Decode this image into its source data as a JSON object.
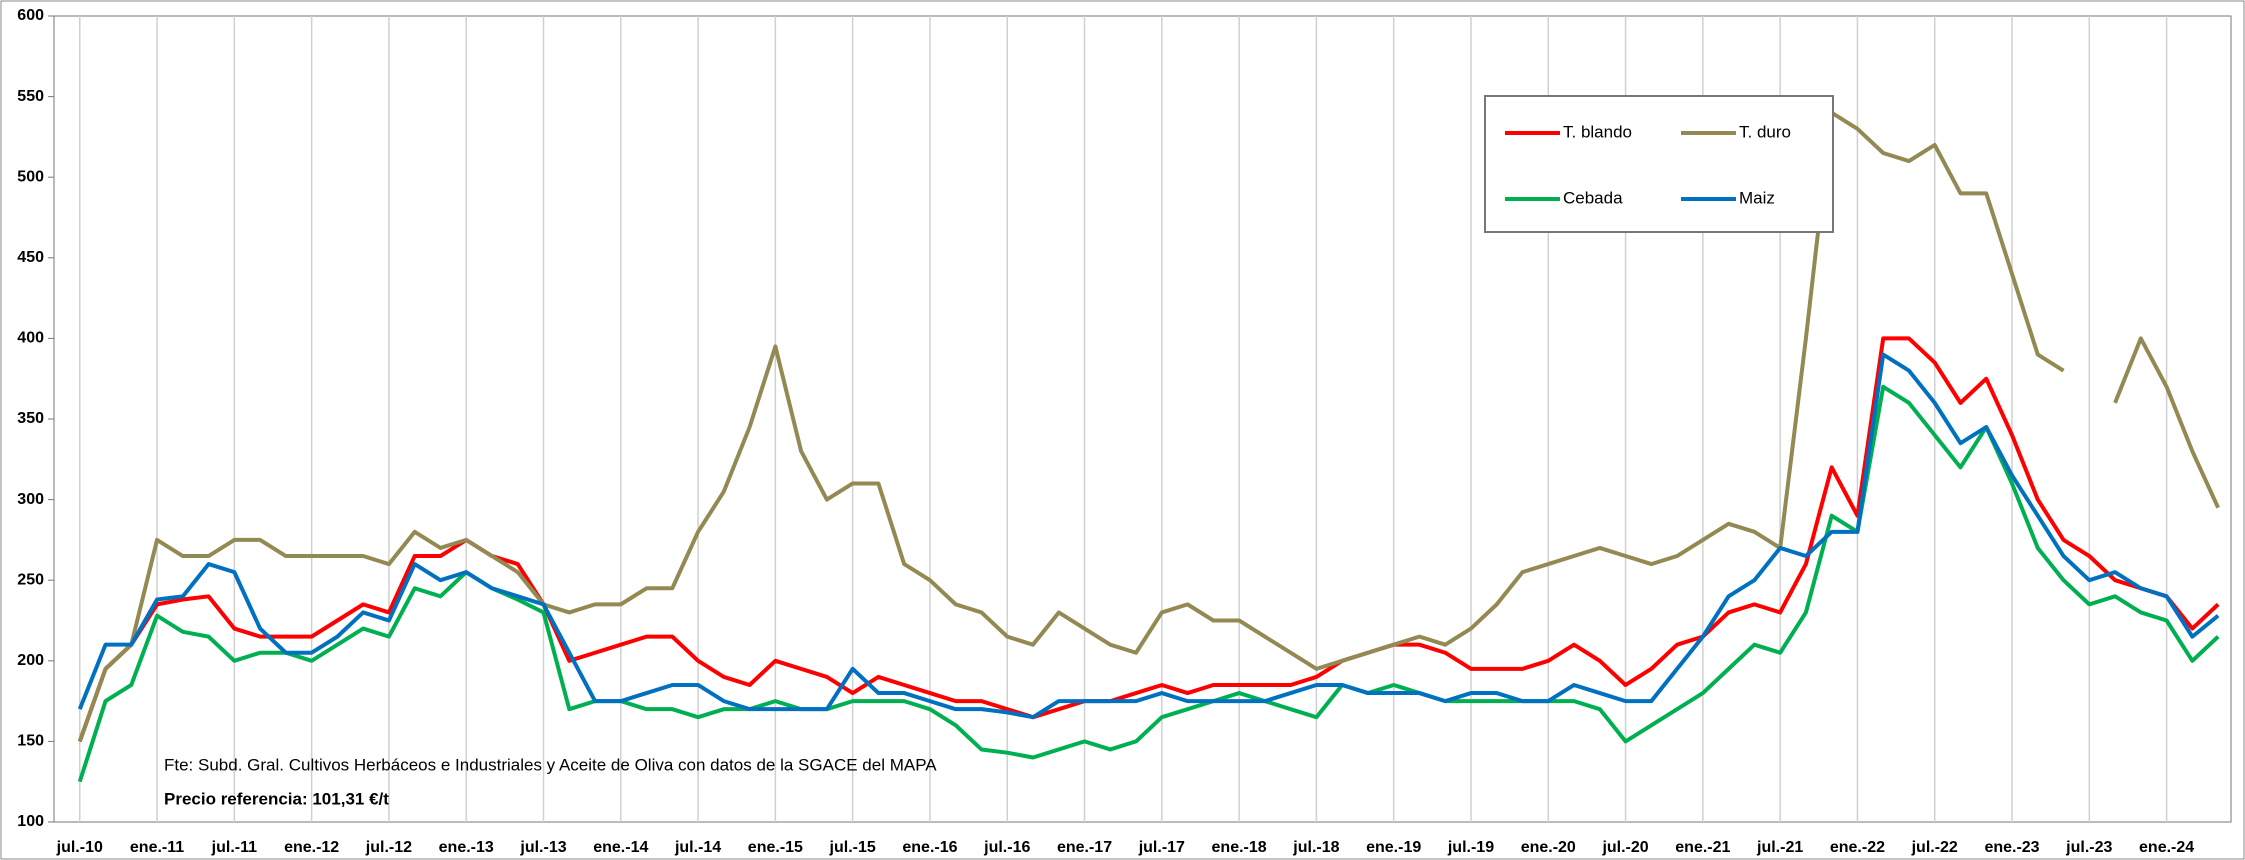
{
  "chart_data": {
    "type": "line",
    "x": [
      0,
      2,
      4,
      6,
      8,
      10,
      12,
      14,
      16,
      18,
      20,
      22,
      24,
      26,
      28,
      30,
      32,
      34,
      36,
      38,
      40,
      42,
      44,
      46,
      48,
      50,
      52,
      54,
      56,
      58,
      60,
      62,
      64,
      66,
      68,
      70,
      72,
      74,
      76,
      78,
      80,
      82,
      84,
      86,
      88,
      90,
      92,
      94,
      96,
      98,
      100,
      102,
      104,
      106,
      108,
      110,
      112,
      114,
      116,
      118,
      120,
      122,
      124,
      126,
      128,
      130,
      132,
      134,
      136,
      138,
      140,
      142,
      144,
      146,
      148,
      150,
      152,
      154,
      156,
      158,
      160,
      162,
      164,
      166
    ],
    "series": [
      {
        "name": "T. blando",
        "color": "#ff0000",
        "values": [
          150,
          195,
          210,
          235,
          238,
          240,
          220,
          215,
          215,
          215,
          225,
          235,
          230,
          265,
          265,
          275,
          265,
          260,
          235,
          200,
          205,
          210,
          215,
          215,
          200,
          190,
          185,
          200,
          195,
          190,
          180,
          190,
          185,
          180,
          175,
          175,
          170,
          165,
          170,
          175,
          175,
          180,
          185,
          180,
          185,
          185,
          185,
          185,
          190,
          200,
          205,
          210,
          210,
          205,
          195,
          195,
          195,
          200,
          210,
          200,
          185,
          195,
          210,
          215,
          230,
          235,
          230,
          260,
          320,
          290,
          400,
          400,
          385,
          360,
          375,
          340,
          300,
          275,
          265,
          250,
          245,
          240,
          220,
          235
        ]
      },
      {
        "name": "T. duro",
        "color": "#938953",
        "values": [
          150,
          195,
          210,
          275,
          265,
          265,
          275,
          275,
          265,
          265,
          265,
          265,
          260,
          280,
          270,
          275,
          265,
          255,
          235,
          230,
          235,
          235,
          245,
          245,
          280,
          305,
          345,
          395,
          330,
          300,
          310,
          310,
          260,
          250,
          235,
          230,
          215,
          210,
          230,
          220,
          210,
          205,
          230,
          235,
          225,
          225,
          215,
          205,
          195,
          200,
          205,
          210,
          215,
          210,
          220,
          235,
          255,
          260,
          265,
          270,
          265,
          260,
          265,
          275,
          285,
          280,
          270,
          400,
          540,
          530,
          515,
          510,
          520,
          490,
          490,
          440,
          390,
          380,
          null,
          360,
          400,
          370,
          330,
          295
        ]
      },
      {
        "name": "Cebada",
        "color": "#00b050",
        "values": [
          125,
          175,
          185,
          228,
          218,
          215,
          200,
          205,
          205,
          200,
          210,
          220,
          215,
          245,
          240,
          255,
          245,
          238,
          230,
          170,
          175,
          175,
          170,
          170,
          165,
          170,
          170,
          175,
          170,
          170,
          175,
          175,
          175,
          170,
          160,
          145,
          143,
          140,
          145,
          150,
          145,
          150,
          165,
          170,
          175,
          180,
          175,
          170,
          165,
          185,
          180,
          185,
          180,
          175,
          175,
          175,
          175,
          175,
          175,
          170,
          150,
          160,
          170,
          180,
          195,
          210,
          205,
          230,
          290,
          280,
          370,
          360,
          340,
          320,
          345,
          310,
          270,
          250,
          235,
          240,
          230,
          225,
          200,
          215
        ]
      },
      {
        "name": "Maiz",
        "color": "#0070c0",
        "values": [
          170,
          210,
          210,
          238,
          240,
          260,
          255,
          220,
          205,
          205,
          215,
          230,
          225,
          260,
          250,
          255,
          245,
          240,
          235,
          205,
          175,
          175,
          180,
          185,
          185,
          175,
          170,
          170,
          170,
          170,
          195,
          180,
          180,
          175,
          170,
          170,
          168,
          165,
          175,
          175,
          175,
          175,
          180,
          175,
          175,
          175,
          175,
          180,
          185,
          185,
          180,
          180,
          180,
          175,
          180,
          180,
          175,
          175,
          185,
          180,
          175,
          175,
          195,
          215,
          240,
          250,
          270,
          265,
          280,
          280,
          390,
          380,
          360,
          335,
          345,
          315,
          290,
          265,
          250,
          255,
          245,
          240,
          215,
          228
        ]
      }
    ],
    "xlim": [
      -2,
      167
    ],
    "xticks": [
      {
        "value": 0,
        "label": "jul.-10"
      },
      {
        "value": 6,
        "label": "ene.-11"
      },
      {
        "value": 12,
        "label": "jul.-11"
      },
      {
        "value": 18,
        "label": "ene.-12"
      },
      {
        "value": 24,
        "label": "jul.-12"
      },
      {
        "value": 30,
        "label": "ene.-13"
      },
      {
        "value": 36,
        "label": "jul.-13"
      },
      {
        "value": 42,
        "label": "ene.-14"
      },
      {
        "value": 48,
        "label": "jul.-14"
      },
      {
        "value": 54,
        "label": "ene.-15"
      },
      {
        "value": 60,
        "label": "jul.-15"
      },
      {
        "value": 66,
        "label": "ene.-16"
      },
      {
        "value": 72,
        "label": "jul.-16"
      },
      {
        "value": 78,
        "label": "ene.-17"
      },
      {
        "value": 84,
        "label": "jul.-17"
      },
      {
        "value": 90,
        "label": "ene.-18"
      },
      {
        "value": 96,
        "label": "jul.-18"
      },
      {
        "value": 102,
        "label": "ene.-19"
      },
      {
        "value": 108,
        "label": "jul.-19"
      },
      {
        "value": 114,
        "label": "ene.-20"
      },
      {
        "value": 120,
        "label": "jul.-20"
      },
      {
        "value": 126,
        "label": "ene.-21"
      },
      {
        "value": 132,
        "label": "jul.-21"
      },
      {
        "value": 138,
        "label": "ene.-22"
      },
      {
        "value": 144,
        "label": "jul.-22"
      },
      {
        "value": 150,
        "label": "ene.-23"
      },
      {
        "value": 156,
        "label": "jul.-23"
      },
      {
        "value": 162,
        "label": "ene.-24"
      }
    ],
    "ylim": [
      100,
      600
    ],
    "yticks": [
      100,
      150,
      200,
      250,
      300,
      350,
      400,
      450,
      500,
      550,
      600
    ],
    "grid": true,
    "annotations": [
      "Fte: Subd. Gral. Cultivos Herbáceos e Industriales y Aceite de Oliva con datos de la SGACE del MAPA",
      "Precio referencia: 101,31 €/t"
    ]
  }
}
